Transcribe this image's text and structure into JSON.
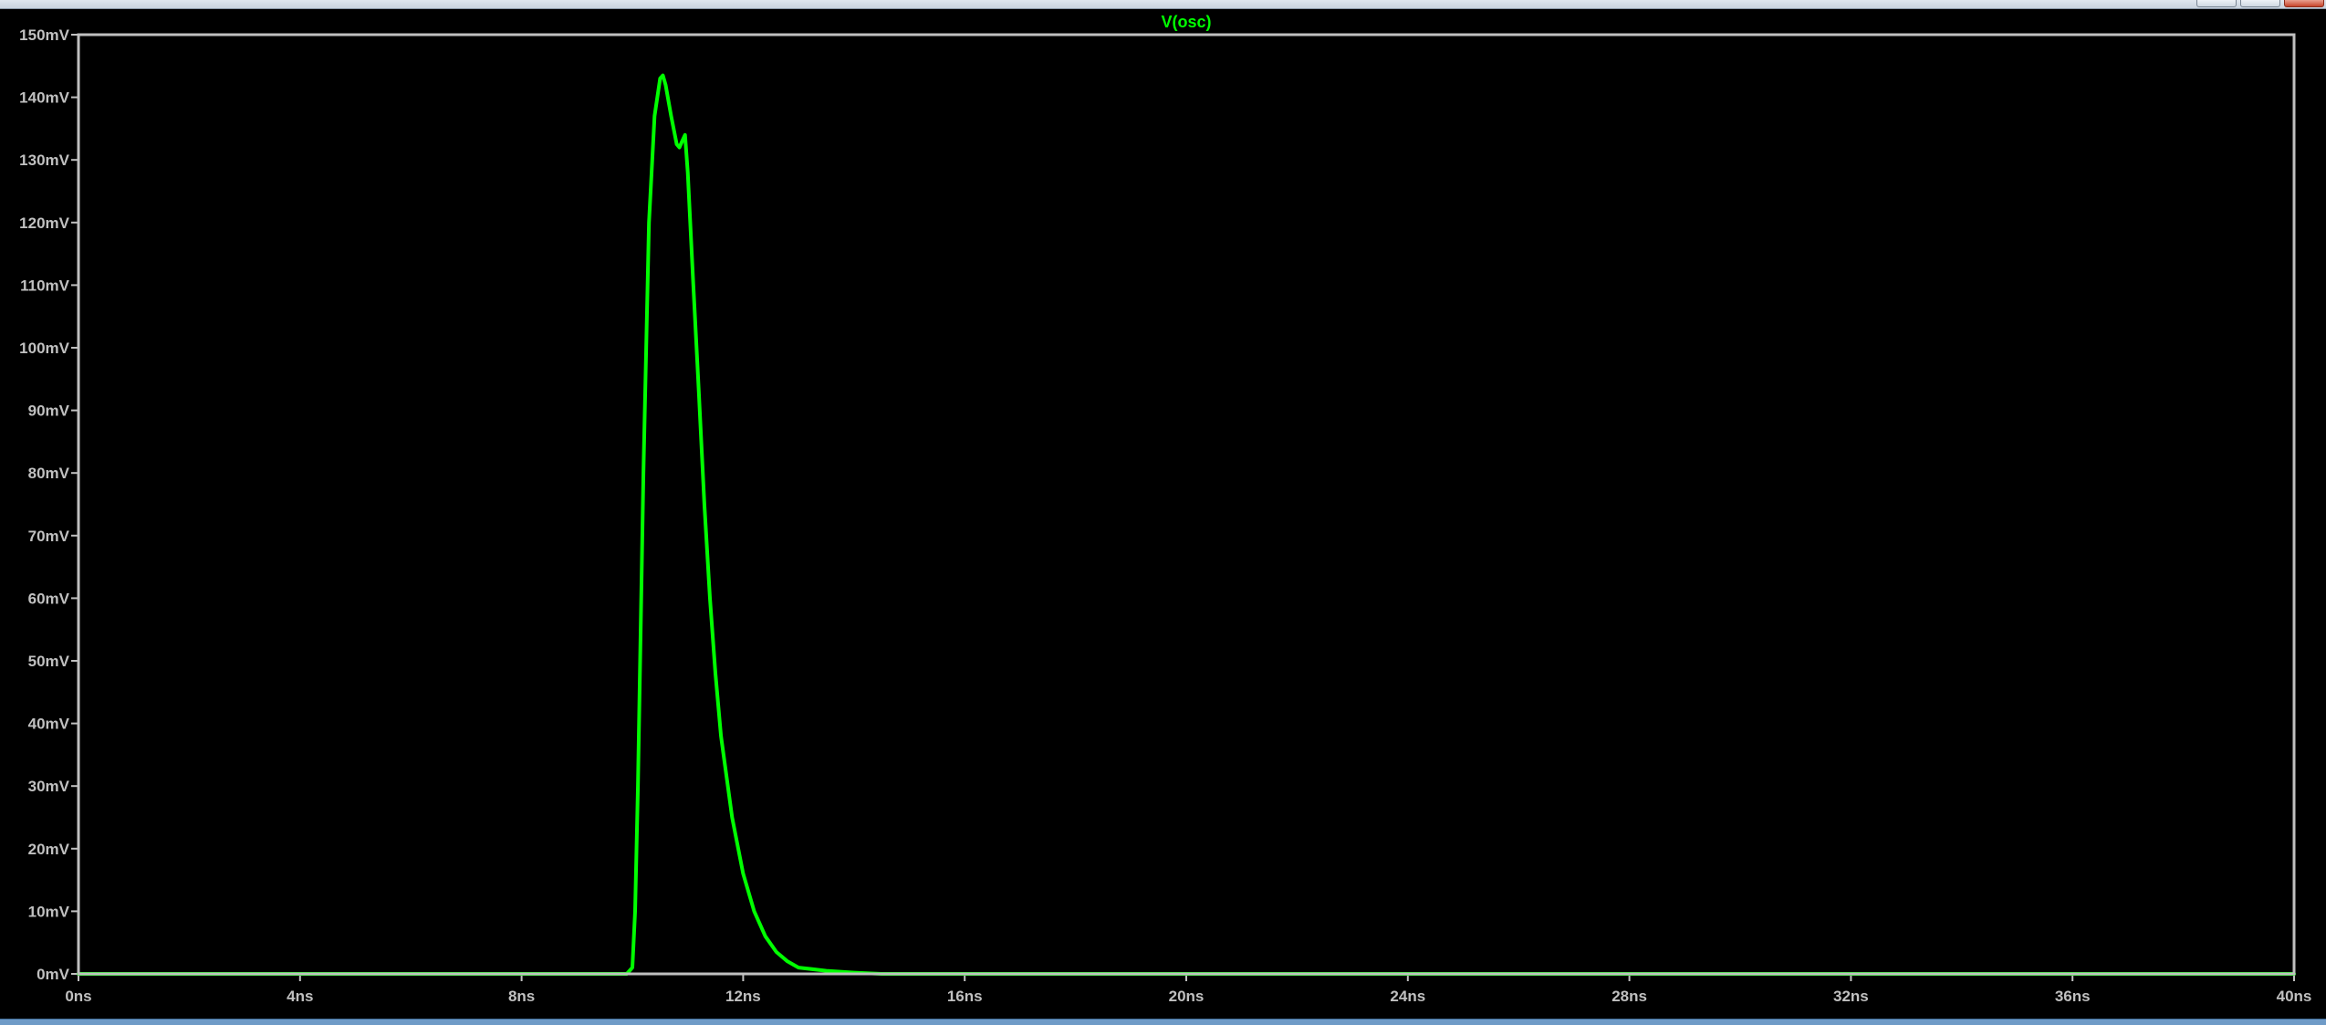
{
  "window": {
    "controls": [
      "minimize-icon",
      "maximize-icon",
      "close-icon"
    ]
  },
  "colors": {
    "background": "#000000",
    "frame": "#c0c0c0",
    "trace": "#00ff00",
    "tick_labels": "#c0c0c0"
  },
  "chart_data": {
    "type": "line",
    "title": "V(osc)",
    "xlabel": "",
    "ylabel": "",
    "xlim": [
      0,
      40
    ],
    "ylim": [
      0,
      150
    ],
    "x_unit": "ns",
    "y_unit": "mV",
    "grid": false,
    "x_ticks": [
      {
        "value": 0,
        "label": "0ns"
      },
      {
        "value": 4,
        "label": "4ns"
      },
      {
        "value": 8,
        "label": "8ns"
      },
      {
        "value": 12,
        "label": "12ns"
      },
      {
        "value": 16,
        "label": "16ns"
      },
      {
        "value": 20,
        "label": "20ns"
      },
      {
        "value": 24,
        "label": "24ns"
      },
      {
        "value": 28,
        "label": "28ns"
      },
      {
        "value": 32,
        "label": "32ns"
      },
      {
        "value": 36,
        "label": "36ns"
      },
      {
        "value": 40,
        "label": "40ns"
      }
    ],
    "y_ticks": [
      {
        "value": 0,
        "label": "0mV"
      },
      {
        "value": 10,
        "label": "10mV"
      },
      {
        "value": 20,
        "label": "20mV"
      },
      {
        "value": 30,
        "label": "30mV"
      },
      {
        "value": 40,
        "label": "40mV"
      },
      {
        "value": 50,
        "label": "50mV"
      },
      {
        "value": 60,
        "label": "60mV"
      },
      {
        "value": 70,
        "label": "70mV"
      },
      {
        "value": 80,
        "label": "80mV"
      },
      {
        "value": 90,
        "label": "90mV"
      },
      {
        "value": 100,
        "label": "100mV"
      },
      {
        "value": 110,
        "label": "110mV"
      },
      {
        "value": 120,
        "label": "120mV"
      },
      {
        "value": 130,
        "label": "130mV"
      },
      {
        "value": 140,
        "label": "140mV"
      },
      {
        "value": 150,
        "label": "150mV"
      }
    ],
    "series": [
      {
        "name": "V(osc)",
        "color": "#00ff00",
        "x": [
          0,
          9.9,
          10.0,
          10.05,
          10.1,
          10.2,
          10.3,
          10.4,
          10.5,
          10.55,
          10.6,
          10.7,
          10.8,
          10.85,
          10.9,
          10.95,
          11.0,
          11.1,
          11.2,
          11.3,
          11.4,
          11.5,
          11.6,
          11.8,
          12.0,
          12.2,
          12.4,
          12.6,
          12.8,
          13.0,
          13.5,
          14.0,
          14.5,
          40.0
        ],
        "y": [
          0,
          0,
          1,
          10,
          30,
          80,
          120,
          137,
          143,
          143.5,
          142,
          137,
          132.5,
          132,
          133,
          134,
          128,
          110,
          93,
          75,
          60,
          48,
          38,
          25,
          16,
          10,
          6,
          3.5,
          2,
          1,
          0.5,
          0.2,
          0,
          0
        ]
      }
    ]
  }
}
